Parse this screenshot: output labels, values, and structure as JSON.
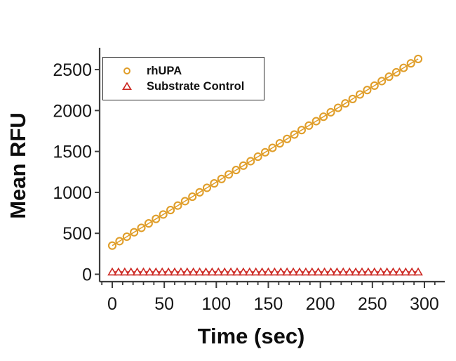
{
  "figure": {
    "background": "#ffffff"
  },
  "colors": {
    "axis": "#3d3d3d",
    "tick_text": "#161616",
    "rhupa_orange": "#E09E2A",
    "control_red": "#CC2822"
  },
  "chart_data": {
    "type": "scatter",
    "title": "",
    "xlabel": "Time (sec)",
    "ylabel": "Mean RFU",
    "xlim": [
      -12,
      320
    ],
    "ylim": [
      -90,
      2770
    ],
    "x_ticks": [
      0,
      50,
      100,
      150,
      200,
      250,
      300
    ],
    "x_minor_ticks": [
      -10,
      10,
      20,
      30,
      40,
      60,
      70,
      80,
      90,
      110,
      120,
      130,
      140,
      160,
      170,
      180,
      190,
      210,
      220,
      230,
      240,
      260,
      270,
      280,
      290,
      310
    ],
    "y_ticks": [
      0,
      500,
      1000,
      1500,
      2000,
      2500
    ],
    "grid": false,
    "legend_position": "top-left-inside",
    "series": [
      {
        "name": "rhUPA",
        "marker": "open-circle",
        "color": "#E09E2A",
        "x": [
          0,
          7,
          14,
          21,
          28,
          35,
          42,
          49,
          56,
          63,
          70,
          77,
          84,
          91,
          98,
          105,
          112,
          119,
          126,
          133,
          140,
          147,
          154,
          161,
          168,
          175,
          182,
          189,
          196,
          203,
          210,
          217,
          224,
          231,
          238,
          245,
          252,
          259,
          266,
          273,
          280,
          287,
          294
        ],
        "y": [
          350,
          404,
          459,
          513,
          567,
          621,
          676,
          730,
          784,
          839,
          893,
          947,
          1001,
          1056,
          1110,
          1164,
          1219,
          1273,
          1327,
          1381,
          1436,
          1490,
          1544,
          1599,
          1653,
          1707,
          1761,
          1816,
          1870,
          1924,
          1979,
          2033,
          2087,
          2141,
          2196,
          2250,
          2304,
          2359,
          2413,
          2467,
          2521,
          2576,
          2630
        ]
      },
      {
        "name": "Substrate Control",
        "marker": "open-triangle",
        "color": "#CC2822",
        "x": [
          0,
          6,
          12,
          18,
          24,
          30,
          36,
          42,
          48,
          54,
          60,
          66,
          72,
          78,
          84,
          90,
          96,
          102,
          108,
          114,
          120,
          126,
          132,
          138,
          144,
          150,
          156,
          162,
          168,
          174,
          180,
          186,
          192,
          198,
          204,
          210,
          216,
          222,
          228,
          234,
          240,
          246,
          252,
          258,
          264,
          270,
          276,
          282,
          288,
          294
        ],
        "y": [
          30,
          30,
          30,
          30,
          30,
          30,
          30,
          30,
          30,
          30,
          30,
          30,
          30,
          30,
          30,
          30,
          30,
          30,
          30,
          30,
          30,
          30,
          30,
          30,
          30,
          30,
          30,
          30,
          30,
          30,
          30,
          30,
          30,
          30,
          30,
          30,
          30,
          30,
          30,
          30,
          30,
          30,
          30,
          30,
          30,
          30,
          30,
          30,
          30,
          30
        ]
      }
    ]
  }
}
